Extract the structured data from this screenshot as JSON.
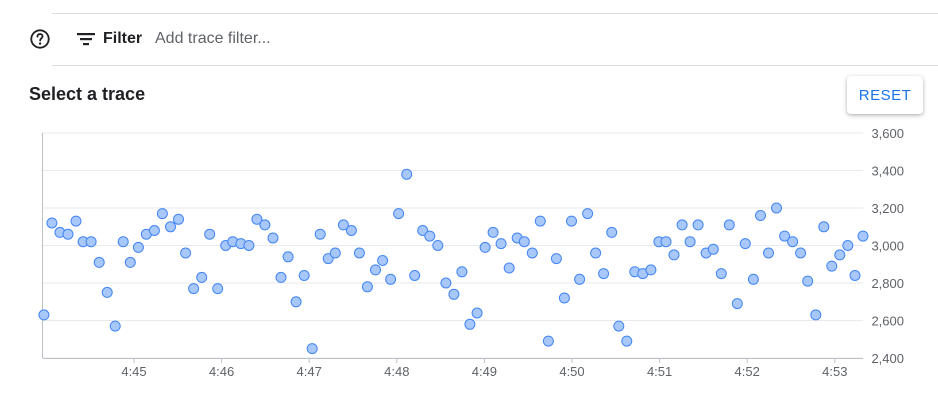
{
  "filter": {
    "label": "Filter",
    "placeholder": "Add trace filter..."
  },
  "trace_section": {
    "title": "Select a trace",
    "reset_label": "RESET"
  },
  "icons": {
    "help": "help-circle-icon",
    "filter": "filter-list-icon"
  },
  "colors": {
    "accent": "#1a73e8",
    "point_fill": "#a8c7fa",
    "point_stroke": "#4285f4"
  },
  "chart_data": {
    "type": "scatter",
    "title": "",
    "xlabel": "",
    "ylabel": "",
    "x_ticks": [
      "4:45",
      "4:46",
      "4:47",
      "4:48",
      "4:49",
      "4:50",
      "4:51",
      "4:52",
      "4:53"
    ],
    "y_ticks": [
      "2,400",
      "2,600",
      "2,800",
      "3,000",
      "3,200",
      "3,400",
      "3,600"
    ],
    "xlim_minutes_past_4": [
      44.1,
      53.3
    ],
    "ylim": [
      2400,
      3600
    ],
    "grid": true,
    "y_axis_side": "right",
    "series": [
      {
        "points": [
          [
            44.11,
            2630
          ],
          [
            44.2,
            3120
          ],
          [
            44.29,
            3070
          ],
          [
            44.38,
            3060
          ],
          [
            44.47,
            3130
          ],
          [
            44.55,
            3020
          ],
          [
            44.64,
            3020
          ],
          [
            44.73,
            2910
          ],
          [
            44.82,
            2750
          ],
          [
            44.91,
            2570
          ],
          [
            45.0,
            3020
          ],
          [
            45.08,
            2910
          ],
          [
            45.17,
            2990
          ],
          [
            45.26,
            3060
          ],
          [
            45.35,
            3080
          ],
          [
            45.44,
            3170
          ],
          [
            45.53,
            3100
          ],
          [
            45.62,
            3140
          ],
          [
            45.7,
            2960
          ],
          [
            45.79,
            2770
          ],
          [
            45.88,
            2830
          ],
          [
            45.97,
            3060
          ],
          [
            46.06,
            2770
          ],
          [
            46.15,
            3000
          ],
          [
            46.23,
            3020
          ],
          [
            46.32,
            3010
          ],
          [
            46.41,
            3000
          ],
          [
            46.5,
            3140
          ],
          [
            46.59,
            3110
          ],
          [
            46.68,
            3040
          ],
          [
            46.77,
            2830
          ],
          [
            46.85,
            2940
          ],
          [
            46.94,
            2700
          ],
          [
            47.03,
            2840
          ],
          [
            47.12,
            2450
          ],
          [
            47.21,
            3060
          ],
          [
            47.3,
            2930
          ],
          [
            47.38,
            2960
          ],
          [
            47.47,
            3110
          ],
          [
            47.56,
            3080
          ],
          [
            47.65,
            2960
          ],
          [
            47.74,
            2780
          ],
          [
            47.83,
            2870
          ],
          [
            47.91,
            2920
          ],
          [
            48.0,
            2820
          ],
          [
            48.09,
            3170
          ],
          [
            48.18,
            3380
          ],
          [
            48.27,
            2840
          ],
          [
            48.36,
            3080
          ],
          [
            48.44,
            3050
          ],
          [
            48.53,
            3000
          ],
          [
            48.62,
            2800
          ],
          [
            48.71,
            2740
          ],
          [
            48.8,
            2860
          ],
          [
            48.89,
            2580
          ],
          [
            48.97,
            2640
          ],
          [
            49.06,
            2990
          ],
          [
            49.15,
            3070
          ],
          [
            49.24,
            3010
          ],
          [
            49.33,
            2880
          ],
          [
            49.42,
            3040
          ],
          [
            49.5,
            3020
          ],
          [
            49.59,
            2960
          ],
          [
            49.68,
            3130
          ],
          [
            49.77,
            2490
          ],
          [
            49.86,
            2930
          ],
          [
            49.95,
            2720
          ],
          [
            50.03,
            3130
          ],
          [
            50.12,
            2820
          ],
          [
            50.21,
            3170
          ],
          [
            50.3,
            2960
          ],
          [
            50.39,
            2850
          ],
          [
            50.48,
            3070
          ],
          [
            50.56,
            2570
          ],
          [
            50.65,
            2490
          ],
          [
            50.74,
            2860
          ],
          [
            50.83,
            2850
          ],
          [
            50.92,
            2870
          ],
          [
            51.01,
            3020
          ],
          [
            51.09,
            3020
          ],
          [
            51.18,
            2950
          ],
          [
            51.27,
            3110
          ],
          [
            51.36,
            3020
          ],
          [
            51.45,
            3110
          ],
          [
            51.54,
            2960
          ],
          [
            51.62,
            2980
          ],
          [
            51.71,
            2850
          ],
          [
            51.8,
            3110
          ],
          [
            51.89,
            2690
          ],
          [
            51.98,
            3010
          ],
          [
            52.07,
            2820
          ],
          [
            52.15,
            3160
          ],
          [
            52.24,
            2960
          ],
          [
            52.33,
            3200
          ],
          [
            52.42,
            3050
          ],
          [
            52.51,
            3020
          ],
          [
            52.6,
            2960
          ],
          [
            52.68,
            2810
          ],
          [
            52.77,
            2630
          ],
          [
            52.86,
            3100
          ],
          [
            52.95,
            2890
          ],
          [
            53.04,
            2950
          ],
          [
            53.13,
            3000
          ],
          [
            53.21,
            2840
          ],
          [
            53.3,
            3050
          ]
        ]
      }
    ]
  }
}
